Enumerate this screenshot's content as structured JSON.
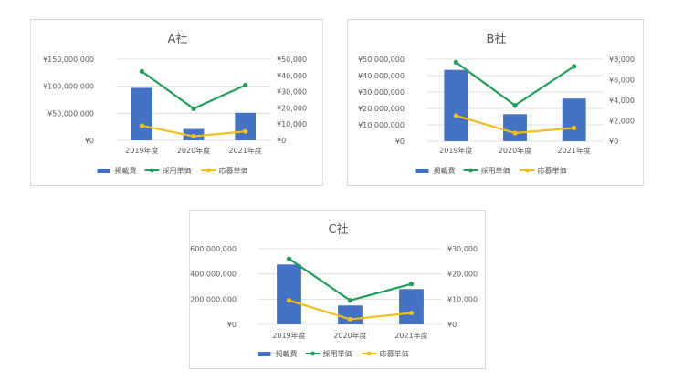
{
  "chart_data": [
    {
      "type": "bar",
      "title": "A社",
      "categories": [
        "2019年度",
        "2020年度",
        "2021年度"
      ],
      "series": [
        {
          "name": "掲載費",
          "type": "bar",
          "axis": "left",
          "color": "#4472C4",
          "values": [
            97000000,
            21000000,
            51000000
          ]
        },
        {
          "name": "採用単価",
          "type": "line",
          "axis": "right",
          "color": "#1E9E5A",
          "values": [
            42500,
            19500,
            34000
          ]
        },
        {
          "name": "応募単価",
          "type": "line",
          "axis": "right",
          "color": "#F2BE1A",
          "values": [
            9000,
            2500,
            5500
          ]
        }
      ],
      "y_left": {
        "min": 0,
        "max": 150000000,
        "ticks": [
          "¥0",
          "¥50,000,000",
          "¥100,000,000",
          "¥150,000,000"
        ]
      },
      "y_right": {
        "min": 0,
        "max": 50000,
        "ticks": [
          "¥0",
          "¥10,000",
          "¥20,000",
          "¥30,000",
          "¥40,000",
          "¥50,000"
        ]
      },
      "grid": true,
      "legend": "bottom"
    },
    {
      "type": "bar",
      "title": "B社",
      "categories": [
        "2019年度",
        "2020年度",
        "2021年度"
      ],
      "series": [
        {
          "name": "掲載費",
          "type": "bar",
          "axis": "left",
          "color": "#4472C4",
          "values": [
            43500000,
            16500000,
            26000000
          ]
        },
        {
          "name": "採用単価",
          "type": "line",
          "axis": "right",
          "color": "#1E9E5A",
          "values": [
            7700,
            3500,
            7300
          ]
        },
        {
          "name": "応募単価",
          "type": "line",
          "axis": "right",
          "color": "#F2BE1A",
          "values": [
            2500,
            800,
            1300
          ]
        }
      ],
      "y_left": {
        "min": 0,
        "max": 50000000,
        "ticks": [
          "¥0",
          "¥10,000,000",
          "¥20,000,000",
          "¥30,000,000",
          "¥40,000,000",
          "¥50,000,000"
        ]
      },
      "y_right": {
        "min": 0,
        "max": 8000,
        "ticks": [
          "¥0",
          "¥2,000",
          "¥4,000",
          "¥6,000",
          "¥8,000"
        ]
      },
      "grid": true,
      "legend": "bottom"
    },
    {
      "type": "bar",
      "title": "C社",
      "categories": [
        "2019年度",
        "2020年度",
        "2021年度"
      ],
      "series": [
        {
          "name": "掲載費",
          "type": "bar",
          "axis": "left",
          "color": "#4472C4",
          "values": [
            475000000,
            150000000,
            280000000
          ]
        },
        {
          "name": "採用単価",
          "type": "line",
          "axis": "right",
          "color": "#1E9E5A",
          "values": [
            26000,
            9500,
            16000
          ]
        },
        {
          "name": "応募単価",
          "type": "line",
          "axis": "right",
          "color": "#F2BE1A",
          "values": [
            9500,
            2000,
            4500
          ]
        }
      ],
      "y_left": {
        "min": 0,
        "max": 600000000,
        "ticks": [
          "¥0",
          "¥200,000,000",
          "¥400,000,000",
          "¥600,000,000"
        ]
      },
      "y_right": {
        "min": 0,
        "max": 30000,
        "ticks": [
          "¥0",
          "¥10,000",
          "¥20,000",
          "¥30,000"
        ]
      },
      "grid": true,
      "legend": "bottom"
    }
  ]
}
